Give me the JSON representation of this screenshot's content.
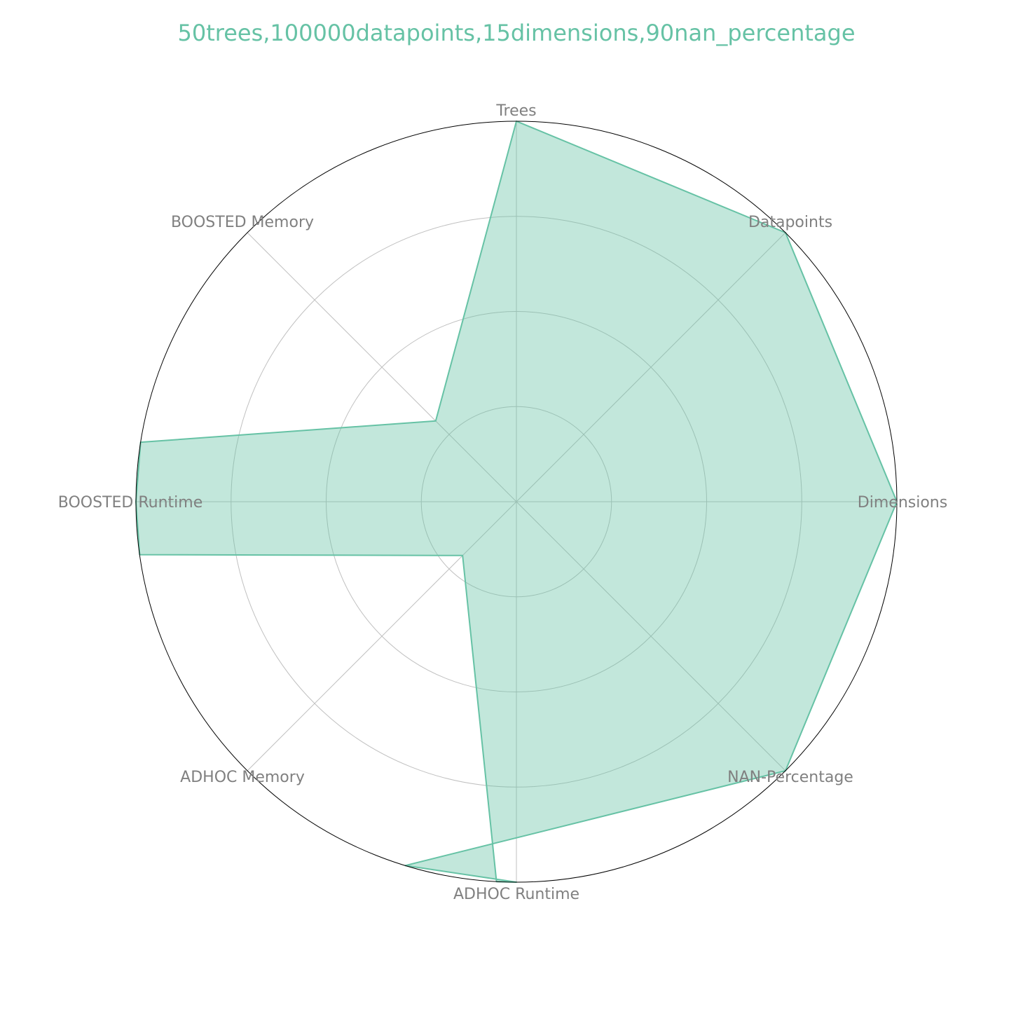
{
  "chart_data": {
    "type": "radar",
    "title": "50trees,100000datapoints,15dimensions,90nan_percentage",
    "axes": [
      "Trees",
      "Datapoints",
      "Dimensions",
      "NAN-Percentage",
      "ADHOC Runtime",
      "ADHOC Memory",
      "BOOSTED Runtime",
      "BOOSTED Memory"
    ],
    "series": [
      {
        "points": [
          {
            "axis": "Trees",
            "value": 1.0
          },
          {
            "axis": "Datapoints",
            "value": 1.0
          },
          {
            "axis": "Dimensions",
            "value": 1.0
          },
          {
            "axis": "NAN-Percentage",
            "value": 1.0
          },
          {
            "axis_angle_deg": 197,
            "value": 1.0
          },
          {
            "axis": "ADHOC Runtime",
            "value": 1.0
          },
          {
            "axis_angle_deg": 183,
            "value": 1.0
          },
          {
            "axis": "ADHOC Memory",
            "value": 0.2
          },
          {
            "axis_angle_deg": 262,
            "value": 1.0
          },
          {
            "axis": "BOOSTED Runtime",
            "value": 1.0
          },
          {
            "axis_angle_deg": 279,
            "value": 1.0
          },
          {
            "axis": "BOOSTED Memory",
            "value": 0.3
          }
        ]
      }
    ],
    "rlim": [
      0,
      1
    ],
    "grid": true,
    "grid_rings": 4,
    "colors": {
      "fill": "#66c2a5",
      "title": "#66c2a5",
      "label": "#808080",
      "grid": "#c0c0c0",
      "outer": "#000000"
    }
  }
}
